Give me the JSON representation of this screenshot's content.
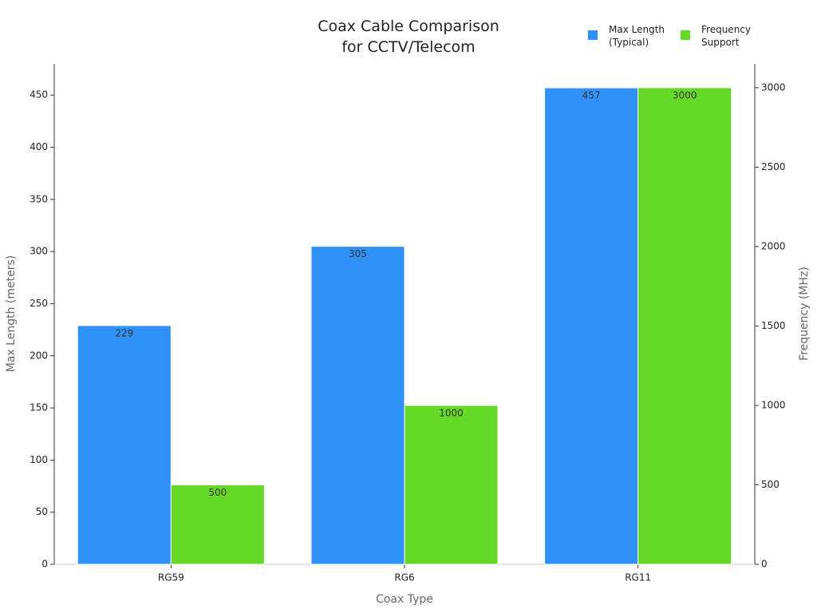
{
  "chart_data": {
    "type": "bar",
    "title": [
      "Coax Cable Comparison",
      "for CCTV/Telecom"
    ],
    "x_label": "Coax Type",
    "y_label": "Max Length (meters)",
    "y2_label": "Frequency (MHz)",
    "categories": [
      "RG59",
      "RG6",
      "RG11"
    ],
    "series": [
      {
        "name": "Max Length\n(Typical)",
        "color": "#3092f8",
        "values": [
          229,
          305,
          457
        ]
      },
      {
        "name": "Frequency\nSupport",
        "color": "#66d928",
        "values": [
          500,
          1000,
          3000
        ],
        "axis": "y2"
      }
    ],
    "ylim": [
      0,
      480
    ],
    "yticks": [
      0,
      50,
      100,
      150,
      200,
      250,
      300,
      350,
      400,
      450
    ],
    "y2lim": [
      0,
      3150
    ],
    "y2ticks": [
      0,
      500,
      1000,
      1500,
      2000,
      2500,
      3000
    ],
    "legend": "top-right",
    "grid": false
  }
}
